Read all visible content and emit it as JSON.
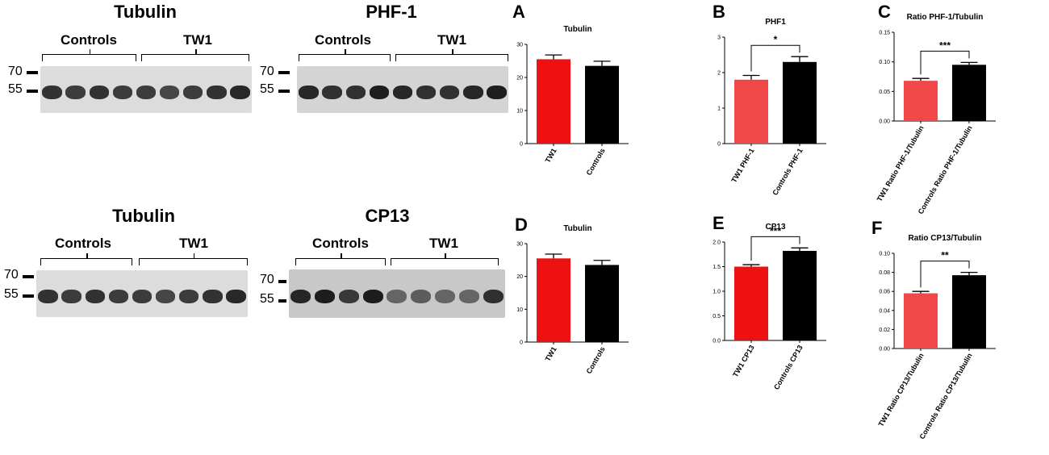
{
  "blots": [
    {
      "title": "Tubulin",
      "group1": "Controls",
      "group2": "TW1",
      "markers": [
        "70",
        "55"
      ]
    },
    {
      "title": "PHF-1",
      "group1": "Controls",
      "group2": "TW1",
      "markers": [
        "70",
        "55"
      ]
    },
    {
      "title": "Tubulin",
      "group1": "Controls",
      "group2": "TW1",
      "markers": [
        "70",
        "55"
      ]
    },
    {
      "title": "CP13",
      "group1": "Controls",
      "group2": "TW1",
      "markers": [
        "70",
        "55"
      ]
    }
  ],
  "colors": {
    "tw1": "#ee1111",
    "tw1_light": "#f04848",
    "controls": "#000000",
    "gel": "#d9d9d9",
    "band": "#1c1c1c"
  },
  "chart_data": [
    {
      "panel": "A",
      "type": "bar",
      "title": "Tubulin",
      "categories": [
        "TW1",
        "Controls"
      ],
      "values": [
        25.5,
        23.5
      ],
      "errors": [
        1.3,
        1.4
      ],
      "ylim": [
        0,
        30
      ],
      "yticks": [
        "0",
        "10",
        "20",
        "30"
      ],
      "significance": "",
      "bar_colors": [
        "#ee1111",
        "#000000"
      ]
    },
    {
      "panel": "B",
      "type": "bar",
      "title": "PHF1",
      "categories": [
        "TW1 PHF-1",
        "Controls PHF-1"
      ],
      "values": [
        1.8,
        2.3
      ],
      "errors": [
        0.12,
        0.15
      ],
      "ylim": [
        0,
        3
      ],
      "yticks": [
        "0",
        "1",
        "2",
        "3"
      ],
      "significance": "*",
      "bar_colors": [
        "#f04848",
        "#000000"
      ]
    },
    {
      "panel": "C",
      "type": "bar",
      "title": "Ratio PHF-1/Tubulin",
      "categories": [
        "TW1 Ratio PHF-1/Tubulin",
        "Controls Ratio PHF-1/Tubulin"
      ],
      "values": [
        0.068,
        0.095
      ],
      "errors": [
        0.004,
        0.004
      ],
      "ylim": [
        0,
        0.15
      ],
      "yticks": [
        "0.00",
        "0.05",
        "0.10",
        "0.15"
      ],
      "significance": "***",
      "bar_colors": [
        "#f04848",
        "#000000"
      ]
    },
    {
      "panel": "D",
      "type": "bar",
      "title": "Tubulin",
      "categories": [
        "TW1",
        "Controls"
      ],
      "values": [
        25.5,
        23.5
      ],
      "errors": [
        1.3,
        1.4
      ],
      "ylim": [
        0,
        30
      ],
      "yticks": [
        "0",
        "10",
        "20",
        "30"
      ],
      "significance": "",
      "bar_colors": [
        "#ee1111",
        "#000000"
      ]
    },
    {
      "panel": "E",
      "type": "bar",
      "title": "CP13",
      "categories": [
        "TW1 CP13",
        "Controls CP13"
      ],
      "values": [
        1.5,
        1.82
      ],
      "errors": [
        0.04,
        0.06
      ],
      "ylim": [
        0,
        2.0
      ],
      "yticks": [
        "0.0",
        "0.5",
        "1.0",
        "1.5",
        "2.0"
      ],
      "significance": "***",
      "bar_colors": [
        "#ee1111",
        "#000000"
      ]
    },
    {
      "panel": "F",
      "type": "bar",
      "title": "Ratio CP13/Tubulin",
      "categories": [
        "TW1 Ratio CP13/Tubulin",
        "Controls Ratio CP13/Tubulin"
      ],
      "values": [
        0.058,
        0.077
      ],
      "errors": [
        0.002,
        0.003
      ],
      "ylim": [
        0,
        0.1
      ],
      "yticks": [
        "0.00",
        "0.02",
        "0.04",
        "0.06",
        "0.08",
        "0.10"
      ],
      "significance": "**",
      "bar_colors": [
        "#f04848",
        "#000000"
      ]
    }
  ]
}
